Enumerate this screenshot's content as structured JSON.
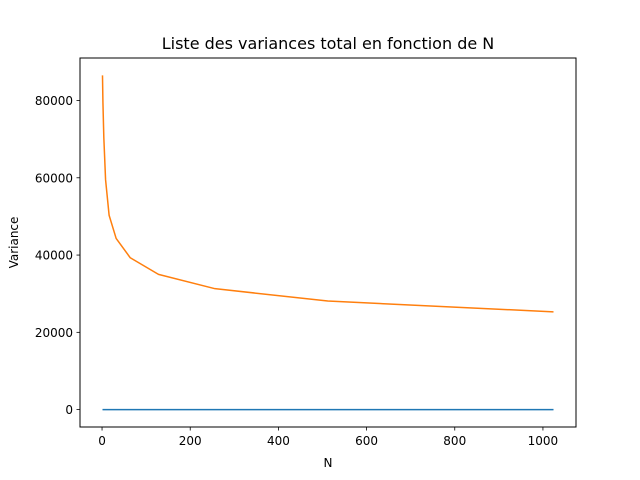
{
  "chart_data": {
    "type": "line",
    "title": "Liste des variances total en fonction de N",
    "xlabel": "N",
    "ylabel": "Variance",
    "xlim": [
      -50,
      1075
    ],
    "ylim": [
      -4500,
      91000
    ],
    "xticks": [
      0,
      200,
      400,
      600,
      800,
      1000
    ],
    "yticks": [
      0,
      20000,
      40000,
      60000,
      80000
    ],
    "grid": false,
    "legend": "none",
    "series": [
      {
        "color": "#1f77b4",
        "x": [
          1,
          2,
          4,
          8,
          16,
          32,
          64,
          128,
          256,
          512,
          1024
        ],
        "y": [
          0,
          0,
          0,
          0,
          0,
          0,
          0,
          0,
          0,
          0,
          0
        ]
      },
      {
        "color": "#ff7f0e",
        "x": [
          1,
          2,
          4,
          8,
          16,
          32,
          64,
          128,
          256,
          512,
          1024
        ],
        "y": [
          86500,
          79500,
          70500,
          59500,
          50300,
          44300,
          39300,
          35000,
          31300,
          28100,
          25300
        ]
      }
    ]
  }
}
